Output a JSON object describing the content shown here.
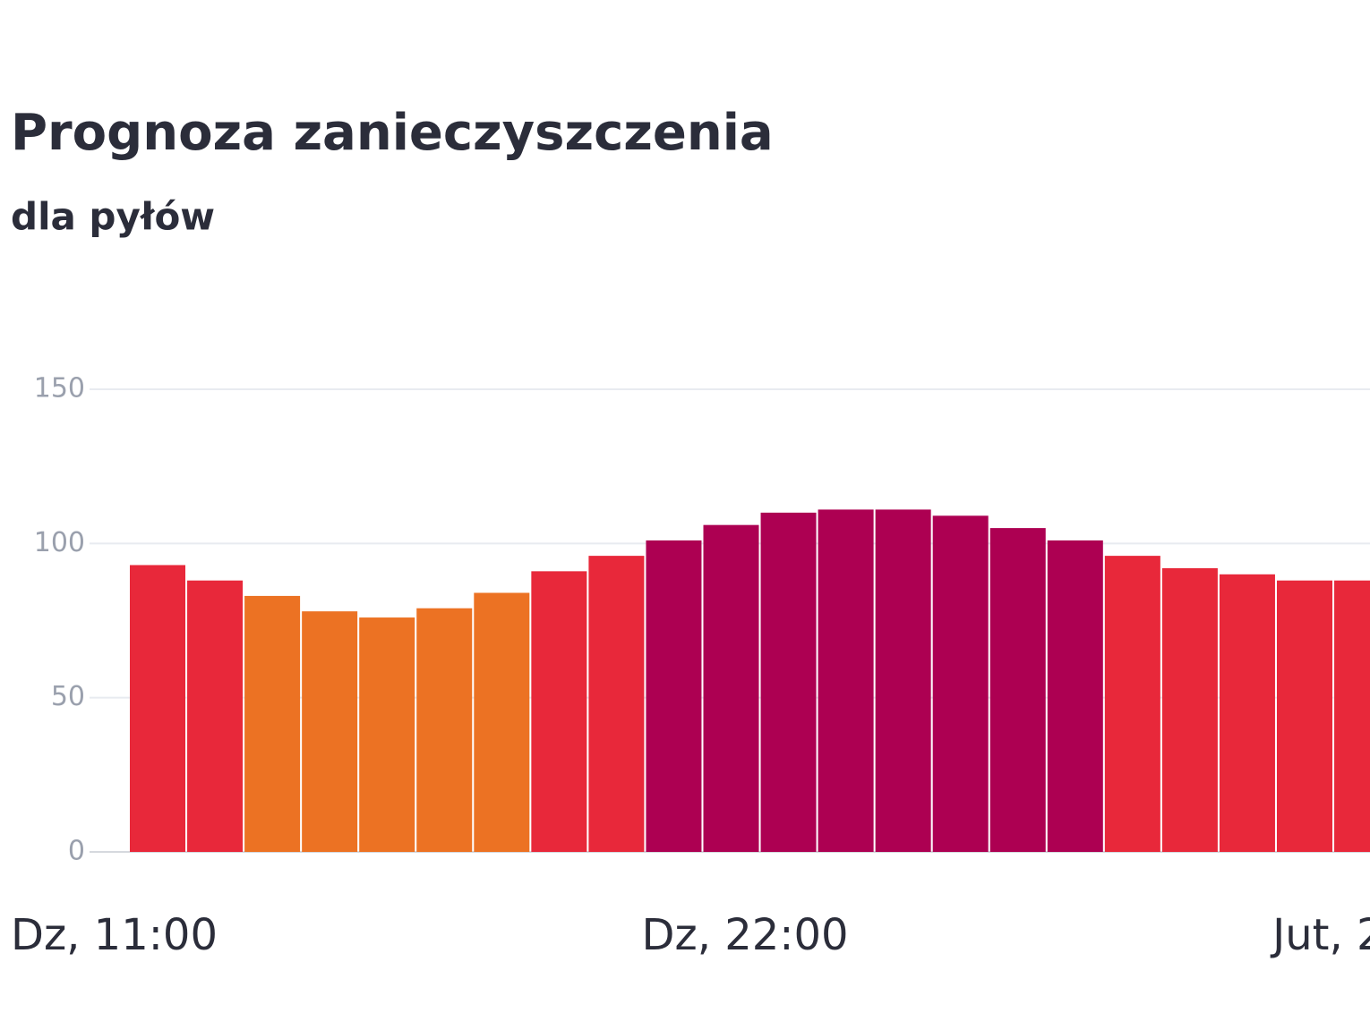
{
  "chart_data": {
    "type": "bar",
    "title": "Prognoza zanieczyszczenia",
    "subtitle": "dla pyłów",
    "categories": [
      "Dz, 11:00",
      null,
      null,
      null,
      null,
      null,
      null,
      null,
      null,
      null,
      null,
      "Dz, 22:00",
      null,
      null,
      null,
      null,
      null,
      null,
      null,
      null,
      null,
      null,
      "Jut, 2"
    ],
    "values": [
      93,
      88,
      83,
      78,
      76,
      79,
      84,
      91,
      96,
      101,
      106,
      110,
      111,
      111,
      109,
      105,
      101,
      96,
      92,
      90,
      88,
      88,
      null
    ],
    "colors": [
      "#e8283a",
      "#e8283a",
      "#ec7223",
      "#ec7223",
      "#ec7223",
      "#ec7223",
      "#ec7223",
      "#e8283a",
      "#e8283a",
      "#ad0052",
      "#ad0052",
      "#ad0052",
      "#ad0052",
      "#ad0052",
      "#ad0052",
      "#ad0052",
      "#ad0052",
      "#e8283a",
      "#e8283a",
      "#e8283a",
      "#e8283a",
      "#e8283a",
      null
    ],
    "ylim": [
      0,
      150
    ],
    "yticks": [
      0,
      50,
      100,
      150
    ],
    "grid": true
  }
}
